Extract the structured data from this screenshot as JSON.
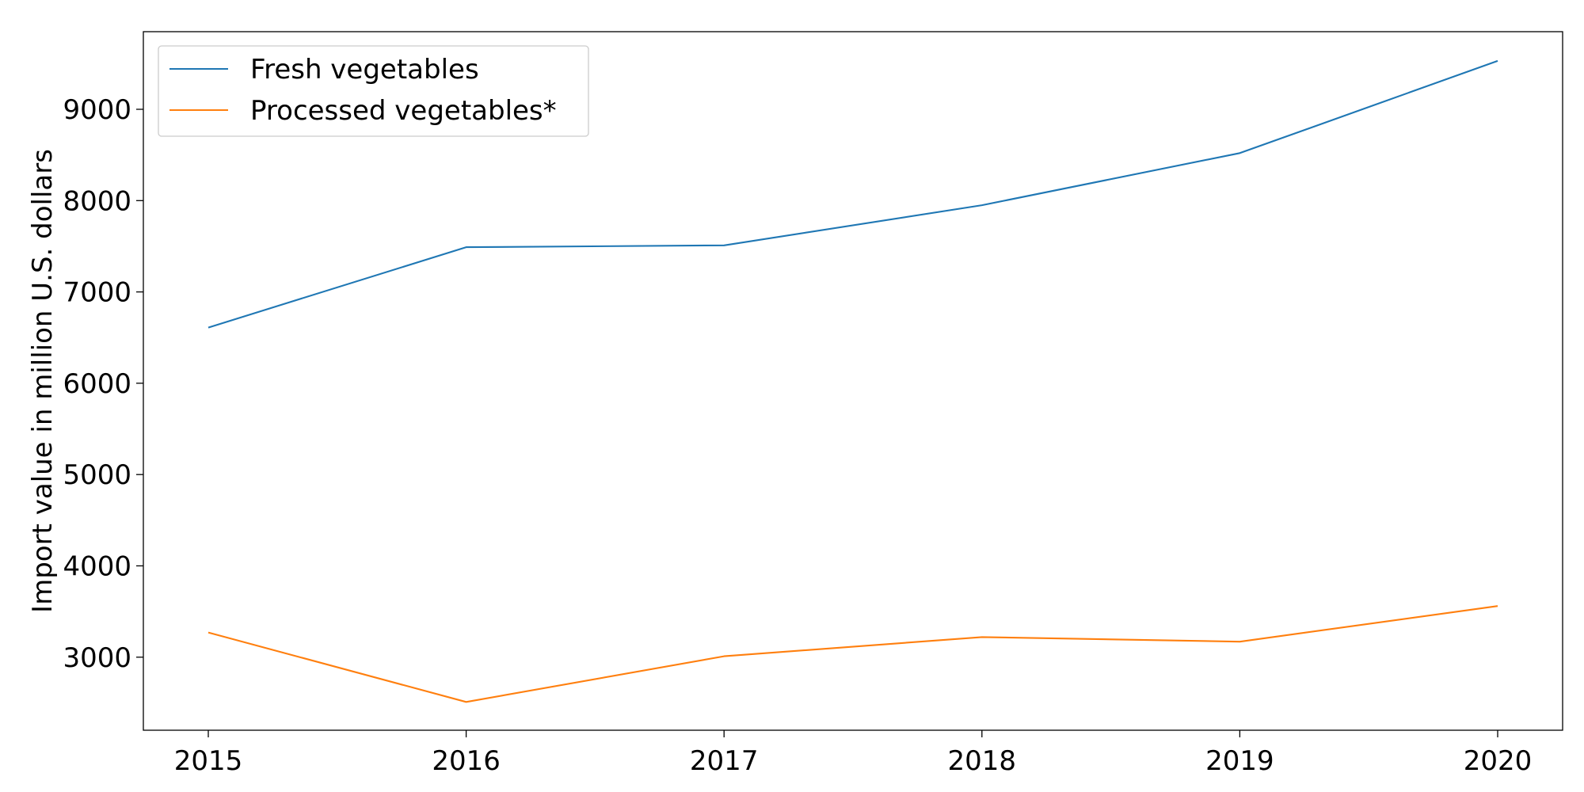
{
  "chart_data": {
    "type": "line",
    "title": "",
    "xlabel": "",
    "ylabel": "Import value in million U.S. dollars",
    "x": [
      "2015",
      "2016",
      "2017",
      "2018",
      "2019",
      "2020"
    ],
    "series": [
      {
        "name": "Fresh vegetables",
        "color": "#1f77b4",
        "values": [
          6610,
          7490,
          7510,
          7950,
          8520,
          9530
        ]
      },
      {
        "name": "Processed vegetables*",
        "color": "#ff7f0e",
        "values": [
          3270,
          2510,
          3010,
          3220,
          3170,
          3560
        ]
      }
    ],
    "ylim": [
      2200,
      9850
    ],
    "yticks": [
      3000,
      4000,
      5000,
      6000,
      7000,
      8000,
      9000
    ],
    "grid": false,
    "legend_position": "top-left"
  }
}
